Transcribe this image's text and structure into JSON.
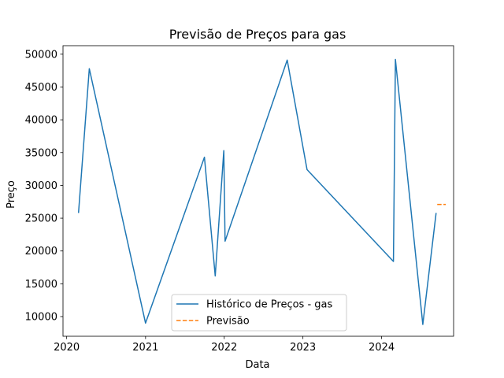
{
  "chart_data": {
    "type": "line",
    "title": "Previsão de Preços para gas",
    "xlabel": "Data",
    "ylabel": "Preço",
    "x_ticks": [
      "2020",
      "2021",
      "2022",
      "2023",
      "2024"
    ],
    "y_ticks": [
      10000,
      15000,
      20000,
      25000,
      30000,
      35000,
      40000,
      45000,
      50000
    ],
    "xlim": [
      "2019-12-15",
      "2024-11-30"
    ],
    "ylim": [
      7000,
      51300
    ],
    "grid": false,
    "legend_position": "lower-center",
    "series": [
      {
        "name": "Histórico de Preços - gas",
        "color": "#1f77b4",
        "style": "solid",
        "points": [
          {
            "x": "2020-02-25",
            "y": 25800
          },
          {
            "x": "2020-04-15",
            "y": 47800
          },
          {
            "x": "2021-01-01",
            "y": 9000
          },
          {
            "x": "2021-10-01",
            "y": 34300
          },
          {
            "x": "2021-11-20",
            "y": 16200
          },
          {
            "x": "2021-12-30",
            "y": 35300
          },
          {
            "x": "2022-01-05",
            "y": 21500
          },
          {
            "x": "2022-10-20",
            "y": 49100
          },
          {
            "x": "2023-01-20",
            "y": 32400
          },
          {
            "x": "2024-02-25",
            "y": 18400
          },
          {
            "x": "2024-03-05",
            "y": 49200
          },
          {
            "x": "2024-07-10",
            "y": 8800
          },
          {
            "x": "2024-09-10",
            "y": 25800
          }
        ]
      },
      {
        "name": "Previsão",
        "color": "#ff7f0e",
        "style": "dashed",
        "points": [
          {
            "x": "2024-09-15",
            "y": 27100
          },
          {
            "x": "2024-10-25",
            "y": 27100
          }
        ]
      }
    ]
  }
}
